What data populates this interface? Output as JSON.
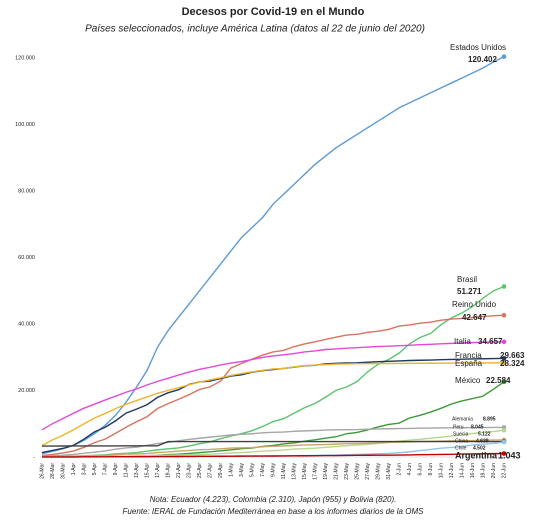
{
  "chart_data": {
    "type": "line",
    "title": "Decesos por Covid-19 en el Mundo",
    "subtitle": "Países seleccionados, incluye América Latina  (datos al 22 de junio del 2020)",
    "notes": [
      "Nota: Ecuador (4.223), Colombia (2.310), Japón (955) y Bolivia (820).",
      "Fuente: IERAL de Fundación Mediterránea en base a los informes diarios de la OMS"
    ],
    "ylim": [
      0,
      120000
    ],
    "yticks": [
      {
        "value": 0,
        "label": "-"
      },
      {
        "value": 20000,
        "label": "20.000"
      },
      {
        "value": 40000,
        "label": "40.000"
      },
      {
        "value": 60000,
        "label": "60.000"
      },
      {
        "value": 80000,
        "label": "80.000"
      },
      {
        "value": 100000,
        "label": "100.000"
      },
      {
        "value": 120000,
        "label": "120.000"
      }
    ],
    "categories": [
      "26-Mar",
      "28-Mar",
      "30-Mar",
      "1-Apr",
      "3-Apr",
      "5-Apr",
      "7-Apr",
      "9-Apr",
      "11-Apr",
      "13-Apr",
      "15-Apr",
      "17-Apr",
      "19-Apr",
      "21-Apr",
      "23-Apr",
      "25-Apr",
      "27-Apr",
      "29-Apr",
      "1-May",
      "3-May",
      "5-May",
      "7-May",
      "9-May",
      "11-May",
      "13-May",
      "15-May",
      "17-May",
      "19-May",
      "21-May",
      "23-May",
      "25-May",
      "27-May",
      "29-May",
      "31-May",
      "2-Jun",
      "4-Jun",
      "6-Jun",
      "8-Jun",
      "10-Jun",
      "12-Jun",
      "14-Jun",
      "16-Jun",
      "18-Jun",
      "20-Jun",
      "22-Jun"
    ],
    "series": [
      {
        "name": "Estados Unidos",
        "color": "#5b9bd5",
        "end_label": "120.402",
        "values": [
          1000,
          1700,
          2500,
          3500,
          5000,
          7000,
          9500,
          12500,
          16500,
          21000,
          26000,
          33000,
          38000,
          42000,
          46000,
          50000,
          54000,
          58000,
          62000,
          66000,
          69000,
          72000,
          76000,
          79000,
          82000,
          85000,
          88000,
          90500,
          93000,
          95000,
          97000,
          99000,
          101000,
          103000,
          105000,
          106500,
          108000,
          109500,
          111000,
          112500,
          114000,
          115500,
          117000,
          118800,
          120402
        ]
      },
      {
        "name": "Brasil",
        "color": "#5cc46c",
        "end_label": "51.271",
        "values": [
          60,
          110,
          160,
          240,
          360,
          490,
          670,
          950,
          1120,
          1330,
          1740,
          2140,
          2460,
          2740,
          3300,
          4000,
          4540,
          5500,
          6330,
          7020,
          7920,
          9150,
          10630,
          11520,
          13150,
          14820,
          16100,
          17970,
          20050,
          21050,
          22670,
          25600,
          27880,
          29310,
          31200,
          34020,
          35930,
          37130,
          39800,
          41830,
          43330,
          45240,
          47750,
          49980,
          51271
        ]
      },
      {
        "name": "Reino Unido",
        "color": "#d9735d",
        "end_label": "42.647",
        "values": [
          460,
          760,
          1230,
          1790,
          2920,
          4320,
          5370,
          7100,
          8960,
          10610,
          12110,
          14580,
          16060,
          17340,
          18740,
          20320,
          21090,
          22790,
          26770,
          28130,
          29430,
          30620,
          31590,
          32060,
          33190,
          33990,
          34640,
          35340,
          36040,
          36670,
          36910,
          37460,
          37840,
          38380,
          39370,
          39730,
          40260,
          40540,
          41130,
          41480,
          41660,
          41970,
          42290,
          42470,
          42647
        ]
      },
      {
        "name": "Italia",
        "color": "#e34ad9",
        "end_label": "34.657",
        "values": [
          8170,
          10020,
          11590,
          13160,
          14680,
          15890,
          17130,
          18280,
          19470,
          20460,
          21650,
          22750,
          23660,
          24650,
          25550,
          26380,
          26980,
          27680,
          28240,
          28710,
          29320,
          29960,
          30400,
          30740,
          31110,
          31610,
          31910,
          32330,
          32490,
          32740,
          32880,
          33070,
          33230,
          33340,
          33480,
          33600,
          33770,
          33900,
          34040,
          34170,
          34300,
          34400,
          34510,
          34610,
          34657
        ]
      },
      {
        "name": "Francia",
        "color": "#1f3864",
        "end_label": "29.663",
        "values": [
          1330,
          1990,
          2600,
          3520,
          5390,
          7560,
          8910,
          10870,
          13200,
          14390,
          15710,
          17920,
          19300,
          20240,
          21820,
          22590,
          22830,
          23600,
          24340,
          24730,
          25500,
          25960,
          26310,
          26620,
          27030,
          27430,
          27560,
          28020,
          28170,
          28280,
          28330,
          28500,
          28660,
          28770,
          28900,
          29020,
          29100,
          29160,
          29280,
          29350,
          29410,
          29480,
          29550,
          29610,
          29663
        ]
      },
      {
        "name": "España",
        "color": "#f0b429",
        "end_label": "28.324",
        "values": [
          3430,
          5140,
          6530,
          8190,
          10000,
          11740,
          13060,
          14560,
          15840,
          16970,
          18060,
          19130,
          20040,
          20850,
          21720,
          22520,
          23190,
          23820,
          24540,
          25100,
          25610,
          26070,
          26480,
          26620,
          27100,
          27460,
          27650,
          27780,
          27940,
          28000,
          28050,
          28080,
          28100,
          28120,
          28140,
          28160,
          28180,
          28200,
          28220,
          28240,
          28260,
          28280,
          28300,
          28310,
          28324
        ]
      },
      {
        "name": "México",
        "color": "#3a9a3a",
        "end_label": "22.584",
        "values": [
          12,
          20,
          28,
          37,
          60,
          94,
          141,
          194,
          233,
          296,
          406,
          486,
          712,
          857,
          1069,
          1351,
          1569,
          1859,
          2154,
          2507,
          2704,
          3160,
          3465,
          3926,
          4220,
          4767,
          5177,
          5666,
          6090,
          6989,
          7394,
          8134,
          9044,
          9779,
          10167,
          11729,
          12545,
          13511,
          14649,
          15944,
          16872,
          17580,
          18310,
          20394,
          22584
        ]
      },
      {
        "name": "Alemania",
        "color": "#a6a6a6",
        "end_label": "8.895",
        "values": [
          200,
          390,
          560,
          780,
          1100,
          1440,
          1810,
          2350,
          2740,
          2970,
          3500,
          4050,
          4400,
          4860,
          5280,
          5640,
          5980,
          6290,
          6620,
          6810,
          6990,
          7270,
          7420,
          7510,
          7720,
          7860,
          7940,
          8090,
          8170,
          8220,
          8260,
          8370,
          8450,
          8500,
          8550,
          8600,
          8660,
          8710,
          8760,
          8790,
          8800,
          8840,
          8860,
          8880,
          8895
        ]
      },
      {
        "name": "Peru",
        "color": "#b5d98a",
        "end_label": "8.045",
        "values": [
          11,
          18,
          30,
          55,
          73,
          121,
          138,
          193,
          230,
          300,
          400,
          480,
          530,
          630,
          700,
          750,
          850,
          1000,
          1200,
          1330,
          1530,
          1750,
          1900,
          2100,
          2400,
          2500,
          2650,
          2900,
          3150,
          3400,
          3600,
          3800,
          4100,
          4400,
          4750,
          5050,
          5300,
          5650,
          5950,
          6300,
          6690,
          7050,
          7450,
          7650,
          8045
        ]
      },
      {
        "name": "Suecia",
        "color": "#c9a66b",
        "end_label": "5.122",
        "values": [
          62,
          105,
          146,
          180,
          280,
          400,
          480,
          690,
          870,
          900,
          1030,
          1330,
          1510,
          1770,
          1940,
          2190,
          2270,
          2460,
          2680,
          2770,
          2850,
          3060,
          3220,
          3310,
          3460,
          3640,
          3680,
          3740,
          3870,
          3990,
          4030,
          4130,
          4270,
          4390,
          4470,
          4540,
          4660,
          4720,
          4800,
          4850,
          4890,
          4940,
          5040,
          5080,
          5122
        ]
      },
      {
        "name": "China",
        "color": "#404040",
        "end_label": "4.639",
        "values": [
          3290,
          3300,
          3310,
          3320,
          3330,
          3340,
          3340,
          3340,
          3350,
          3350,
          3350,
          3350,
          4632,
          4632,
          4632,
          4633,
          4633,
          4633,
          4633,
          4633,
          4633,
          4633,
          4633,
          4633,
          4634,
          4634,
          4634,
          4634,
          4634,
          4634,
          4634,
          4634,
          4634,
          4634,
          4634,
          4634,
          4634,
          4634,
          4634,
          4634,
          4634,
          4638,
          4638,
          4639,
          4639
        ]
      },
      {
        "name": "Chile",
        "color": "#8fc6e8",
        "end_label": "4.502",
        "values": [
          2,
          5,
          8,
          12,
          22,
          27,
          43,
          65,
          82,
          94,
          116,
          126,
          139,
          151,
          168,
          198,
          207,
          234,
          260,
          275,
          294,
          312,
          335,
          368,
          394,
          421,
          478,
          544,
          589,
          673,
          761,
          890,
          997,
          1054,
          1275,
          1541,
          1938,
          2290,
          2648,
          2870,
          3101,
          3615,
          3841,
          4093,
          4502
        ]
      },
      {
        "name": "Argentina",
        "color": "#c00000",
        "end_label": "1.043",
        "values": [
          12,
          18,
          24,
          28,
          43,
          48,
          65,
          82,
          90,
          101,
          109,
          129,
          136,
          152,
          176,
          192,
          207,
          225,
          246,
          264,
          282,
          293,
          305,
          319,
          353,
          373,
          403,
          433,
          445,
          484,
          500,
          528,
          537,
          552,
          583,
          632,
          693,
          735,
          765,
          815,
          878,
          913,
          979,
          1016,
          1043
        ]
      }
    ]
  }
}
